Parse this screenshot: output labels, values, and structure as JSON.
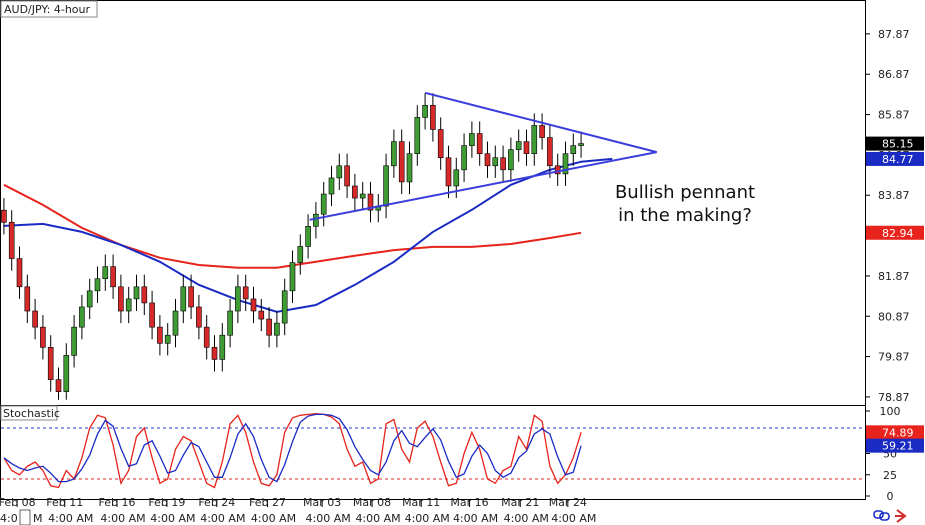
{
  "chart_data": [
    {
      "type": "candlestick",
      "title": "AUD/JPY: 4-hour",
      "open": [
        83.5,
        83.2,
        82.3,
        81.6,
        81.0,
        80.6,
        80.1,
        79.3,
        79.0,
        79.9,
        80.6,
        81.1,
        81.5,
        81.8,
        82.1,
        81.6,
        81.0,
        81.3,
        81.6,
        81.2,
        80.6,
        80.2,
        80.4,
        81.0,
        81.6,
        81.1,
        80.6,
        80.1,
        79.8,
        80.4,
        81.0,
        81.6,
        81.3,
        81.0,
        80.8,
        80.4,
        80.7,
        81.5,
        82.2,
        82.6,
        83.1,
        83.4,
        83.9,
        84.3,
        84.6,
        84.1,
        83.8,
        83.9,
        83.5,
        83.6,
        84.6,
        85.2,
        84.2,
        84.9,
        85.8,
        86.1,
        85.5,
        84.8,
        84.1,
        84.5,
        85.1,
        85.4,
        84.9,
        84.6,
        84.8,
        84.5,
        85.0,
        85.2,
        84.9,
        85.6,
        85.3,
        84.6,
        84.4,
        84.9,
        85.1
      ],
      "high": [
        83.8,
        83.5,
        82.6,
        81.9,
        81.3,
        80.9,
        80.4,
        79.6,
        80.2,
        80.9,
        81.4,
        81.8,
        82.1,
        82.4,
        82.4,
        81.9,
        81.6,
        81.9,
        81.9,
        81.5,
        80.9,
        80.7,
        81.3,
        81.9,
        81.9,
        81.4,
        80.9,
        80.4,
        80.7,
        81.3,
        81.9,
        81.9,
        81.6,
        81.3,
        81.1,
        81.0,
        81.8,
        82.5,
        82.9,
        83.4,
        83.7,
        84.2,
        84.6,
        84.9,
        84.9,
        84.4,
        84.2,
        84.2,
        83.9,
        84.9,
        85.5,
        85.5,
        85.2,
        86.1,
        86.4,
        86.4,
        85.8,
        85.1,
        84.8,
        85.4,
        85.7,
        85.7,
        85.2,
        85.1,
        85.1,
        85.3,
        85.5,
        85.5,
        85.9,
        85.9,
        85.6,
        84.9,
        85.2,
        85.4,
        85.45
      ],
      "low": [
        82.9,
        82.0,
        81.3,
        80.7,
        80.3,
        79.8,
        79.0,
        78.8,
        78.8,
        79.6,
        80.3,
        80.8,
        81.2,
        81.5,
        81.3,
        80.7,
        80.7,
        81.0,
        80.9,
        80.3,
        79.9,
        79.9,
        80.1,
        80.7,
        80.8,
        80.3,
        79.8,
        79.5,
        79.5,
        80.1,
        80.7,
        81.0,
        80.7,
        80.5,
        80.1,
        80.1,
        80.4,
        81.2,
        81.9,
        82.3,
        82.8,
        83.1,
        83.6,
        84.0,
        83.8,
        83.5,
        83.5,
        83.2,
        83.2,
        83.3,
        84.3,
        83.9,
        83.9,
        84.6,
        85.5,
        85.2,
        84.5,
        83.8,
        83.8,
        84.2,
        84.8,
        84.6,
        84.3,
        84.3,
        84.2,
        84.2,
        84.7,
        84.6,
        84.6,
        85.0,
        84.3,
        84.1,
        84.1,
        84.6,
        84.8
      ],
      "close": [
        83.2,
        82.3,
        81.6,
        81.0,
        80.6,
        80.1,
        79.3,
        79.0,
        79.9,
        80.6,
        81.1,
        81.5,
        81.8,
        82.1,
        81.6,
        81.0,
        81.3,
        81.6,
        81.2,
        80.6,
        80.2,
        80.4,
        81.0,
        81.6,
        81.1,
        80.6,
        80.1,
        79.8,
        80.4,
        81.0,
        81.6,
        81.3,
        81.0,
        80.8,
        80.4,
        80.7,
        81.5,
        82.2,
        82.6,
        83.1,
        83.4,
        83.9,
        84.3,
        84.6,
        84.1,
        83.8,
        83.9,
        83.5,
        83.6,
        84.6,
        85.2,
        84.2,
        84.9,
        85.8,
        86.1,
        85.5,
        84.8,
        84.1,
        84.5,
        85.1,
        85.4,
        84.9,
        84.6,
        84.8,
        84.5,
        85.0,
        85.2,
        84.9,
        85.6,
        85.3,
        84.6,
        84.4,
        84.9,
        85.1,
        85.15
      ],
      "color_up": "#3f9c35",
      "color_down": "#d62a2a",
      "series": [
        {
          "color": "#e8231b",
          "x": [
            0,
            5,
            10,
            15,
            20,
            25,
            30,
            35,
            40,
            45,
            50,
            55,
            60,
            65,
            70,
            74
          ],
          "values": [
            84.13,
            83.63,
            83.06,
            82.64,
            82.32,
            82.14,
            82.07,
            82.07,
            82.22,
            82.37,
            82.51,
            82.59,
            82.59,
            82.66,
            82.81,
            82.94
          ]
        },
        {
          "color": "#1a2bc4",
          "x": [
            0,
            5,
            10,
            15,
            20,
            25,
            30,
            35,
            40,
            45,
            50,
            55,
            60,
            65,
            70,
            74,
            78
          ],
          "values": [
            83.11,
            83.16,
            82.96,
            82.64,
            82.22,
            81.65,
            81.27,
            80.98,
            81.15,
            81.65,
            82.22,
            82.96,
            83.51,
            84.13,
            84.5,
            84.7,
            84.77
          ]
        }
      ],
      "trendline": {
        "color": "#3a3ddc",
        "x": [
          39.2,
          83.7,
          54.0
        ],
        "values": [
          83.26,
          84.94,
          86.41
        ]
      },
      "annotation": [
        "Bullish pennant",
        "in the making?"
      ],
      "xlim": [
        -0.5,
        110.4
      ],
      "ylim": [
        78.67,
        88.71
      ],
      "yticks": [
        87.87,
        86.87,
        85.87,
        84.87,
        83.87,
        82.87,
        81.87,
        80.87,
        79.87,
        78.87
      ],
      "xticks": [
        {
          "value": 1.7,
          "label": "Feb 08"
        },
        {
          "value": 7.8,
          "label": "Feb 11"
        },
        {
          "value": 14.5,
          "label": "Feb 16"
        },
        {
          "value": 20.9,
          "label": "Feb 19"
        },
        {
          "value": 27.3,
          "label": "Feb 24"
        },
        {
          "value": 33.8,
          "label": "Feb 27"
        },
        {
          "value": 40.8,
          "label": "Mar 03"
        },
        {
          "value": 47.2,
          "label": "Mar 08"
        },
        {
          "value": 53.5,
          "label": "Mar 11"
        },
        {
          "value": 59.7,
          "label": "Mar 16"
        },
        {
          "value": 66.2,
          "label": "Mar 21"
        },
        {
          "value": 72.3,
          "label": "Mar 24"
        }
      ],
      "x_time_labels": [
        "4:0",
        "M",
        "4:00 AM",
        "4:00 AM",
        "4:00 AM",
        "4:00 AM",
        "4:00 AM",
        "4:00 AM",
        "4:00 AM",
        "4:00 AM",
        "4:00 AM",
        "4:00 AM",
        "4:00 AM"
      ]
    },
    {
      "type": "line",
      "title": "Stochastic",
      "series": [
        {
          "color": "#e8231b",
          "values": [
            45,
            30,
            25,
            35,
            40,
            30,
            12,
            10,
            30,
            20,
            45,
            80,
            95,
            92,
            60,
            15,
            30,
            70,
            80,
            45,
            15,
            20,
            55,
            70,
            65,
            40,
            15,
            10,
            40,
            85,
            95,
            75,
            40,
            15,
            12,
            25,
            75,
            92,
            95,
            96,
            97,
            96,
            93,
            85,
            55,
            35,
            40,
            15,
            20,
            85,
            90,
            55,
            40,
            80,
            88,
            70,
            40,
            12,
            15,
            50,
            75,
            55,
            20,
            15,
            30,
            35,
            70,
            55,
            95,
            88,
            35,
            15,
            25,
            45,
            74.89
          ]
        },
        {
          "color": "#1a2bc4",
          "values": [
            45,
            38,
            33,
            30,
            33,
            35,
            27,
            17,
            17,
            20,
            32,
            48,
            73,
            89,
            82,
            56,
            35,
            38,
            60,
            65,
            47,
            27,
            30,
            48,
            63,
            58,
            40,
            22,
            22,
            45,
            73,
            85,
            70,
            43,
            22,
            17,
            37,
            64,
            87,
            94,
            96,
            96,
            95,
            91,
            78,
            58,
            43,
            30,
            25,
            40,
            65,
            77,
            62,
            58,
            69,
            79,
            66,
            41,
            22,
            26,
            47,
            60,
            50,
            30,
            22,
            27,
            45,
            53,
            73,
            79,
            73,
            46,
            25,
            28,
            59.21
          ]
        }
      ],
      "levels": [
        {
          "value": 80,
          "color": "#2a3bd0"
        },
        {
          "value": 20,
          "color": "#d62a2a"
        }
      ],
      "xlim": [
        -0.5,
        110.4
      ],
      "ylim": [
        -4.7,
        107.06
      ],
      "yticks": [
        100,
        75,
        50,
        25,
        0
      ]
    }
  ]
}
